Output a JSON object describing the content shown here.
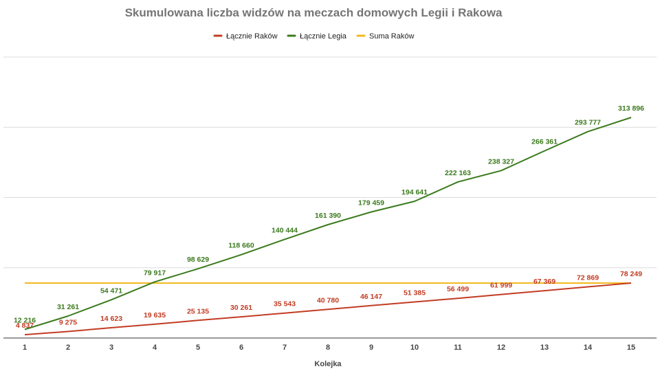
{
  "chart_data": {
    "type": "line",
    "title": "Skumulowana liczba widzów na meczach domowych Legii i Rakowa",
    "xlabel": "Kolejka",
    "ylabel": "",
    "categories": [
      "1",
      "2",
      "3",
      "4",
      "5",
      "6",
      "7",
      "8",
      "9",
      "10",
      "11",
      "12",
      "13",
      "14",
      "15"
    ],
    "ylim": [
      0,
      400000
    ],
    "y_gridlines": [
      0,
      100000,
      200000,
      300000,
      400000
    ],
    "y_tick_labels_shown": false,
    "grid": true,
    "legend_position": "top",
    "series": [
      {
        "name": "Łącznie Raków",
        "color": "#c23b22",
        "values": [
          4837,
          9275,
          14623,
          19635,
          25135,
          30261,
          35543,
          40780,
          46147,
          51385,
          56499,
          61999,
          67369,
          72869,
          78249
        ],
        "labels": [
          "4 837",
          "9 275",
          "14 623",
          "19 635",
          "25 135",
          "30 261",
          "35 543",
          "40 780",
          "46 147",
          "51 385",
          "56 499",
          "61 999",
          "67 369",
          "72 869",
          "78 249"
        ]
      },
      {
        "name": "Łącznie Legia",
        "color": "#3a7a1c",
        "values": [
          12216,
          31261,
          54471,
          79917,
          98629,
          118660,
          140444,
          161390,
          179459,
          194641,
          222163,
          238327,
          266361,
          293777,
          313896
        ],
        "labels": [
          "12 216",
          "31 261",
          "54 471",
          "79 917",
          "98 629",
          "118 660",
          "140 444",
          "161 390",
          "179 459",
          "194 641",
          "222 163",
          "238 327",
          "266 361",
          "293 777",
          "313 896"
        ]
      },
      {
        "name": "Suma Raków",
        "color": "#f2b81d",
        "values": [
          78249,
          78249,
          78249,
          78249,
          78249,
          78249,
          78249,
          78249,
          78249,
          78249,
          78249,
          78249,
          78249,
          78249,
          78249
        ],
        "labels": []
      }
    ]
  }
}
